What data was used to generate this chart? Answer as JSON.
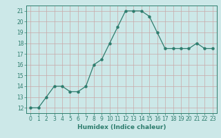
{
  "x": [
    0,
    1,
    2,
    3,
    4,
    5,
    6,
    7,
    8,
    9,
    10,
    11,
    12,
    13,
    14,
    15,
    16,
    17,
    18,
    19,
    20,
    21,
    22,
    23
  ],
  "y": [
    12,
    12,
    13,
    14,
    14,
    13.5,
    13.5,
    14,
    16,
    16.5,
    18,
    19.5,
    21,
    21,
    21,
    20.5,
    19,
    17.5,
    17.5,
    17.5,
    17.5,
    18,
    17.5,
    17.5
  ],
  "line_color": "#2e7d6e",
  "marker_color": "#2e7d6e",
  "bg_color": "#cce8e8",
  "grid_major_color": "#c8a8a8",
  "xlabel": "Humidex (Indice chaleur)",
  "yticks": [
    12,
    13,
    14,
    15,
    16,
    17,
    18,
    19,
    20,
    21
  ],
  "xticks": [
    0,
    1,
    2,
    3,
    4,
    5,
    6,
    7,
    8,
    9,
    10,
    11,
    12,
    13,
    14,
    15,
    16,
    17,
    18,
    19,
    20,
    21,
    22,
    23
  ],
  "xlim": [
    -0.5,
    23.5
  ],
  "ylim": [
    11.5,
    21.5
  ],
  "tick_color": "#2e7d6e",
  "label_fontsize": 6.0,
  "tick_fontsize": 5.5,
  "xlabel_fontsize": 6.5
}
